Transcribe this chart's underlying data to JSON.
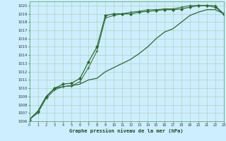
{
  "background_color": "#cceeff",
  "grid_color": "#aaccaa",
  "line_color": "#2d6a2d",
  "xlabel": "Graphe pression niveau de la mer (hPa)",
  "ylim": [
    1006,
    1020.5
  ],
  "xlim": [
    0,
    23
  ],
  "yticks": [
    1006,
    1007,
    1008,
    1009,
    1010,
    1011,
    1012,
    1013,
    1014,
    1015,
    1016,
    1017,
    1018,
    1019,
    1020
  ],
  "xticks": [
    0,
    1,
    2,
    3,
    4,
    5,
    6,
    7,
    8,
    9,
    10,
    11,
    12,
    13,
    14,
    15,
    16,
    17,
    18,
    19,
    20,
    21,
    22,
    23
  ],
  "series": [
    {
      "y": [
        1006.2,
        1007.2,
        1009.0,
        1010.0,
        1010.5,
        1010.6,
        1011.2,
        1013.2,
        1015.0,
        1018.8,
        1019.0,
        1019.0,
        1019.0,
        1019.2,
        1019.3,
        1019.4,
        1019.5,
        1019.5,
        1019.6,
        1019.8,
        1020.0,
        1020.0,
        1019.8,
        1019.0
      ],
      "marker": true,
      "marker_style": "D",
      "markersize": 2.0,
      "linewidth": 0.9
    },
    {
      "y": [
        1006.2,
        1007.2,
        1009.0,
        1010.0,
        1010.2,
        1010.3,
        1010.5,
        1011.0,
        1011.2,
        1012.0,
        1012.5,
        1013.0,
        1013.5,
        1014.2,
        1015.0,
        1016.0,
        1016.8,
        1017.2,
        1018.0,
        1018.8,
        1019.2,
        1019.5,
        1019.5,
        1019.0
      ],
      "marker": false,
      "linewidth": 0.9
    },
    {
      "y": [
        1006.2,
        1007.0,
        1008.8,
        1009.8,
        1010.2,
        1010.3,
        1010.8,
        1012.5,
        1014.5,
        1018.5,
        1018.8,
        1019.0,
        1019.2,
        1019.3,
        1019.5,
        1019.5,
        1019.6,
        1019.6,
        1019.8,
        1020.0,
        1020.0,
        1020.0,
        1020.0,
        1019.0
      ],
      "marker": true,
      "marker_style": "+",
      "markersize": 3.0,
      "linewidth": 0.7
    }
  ]
}
